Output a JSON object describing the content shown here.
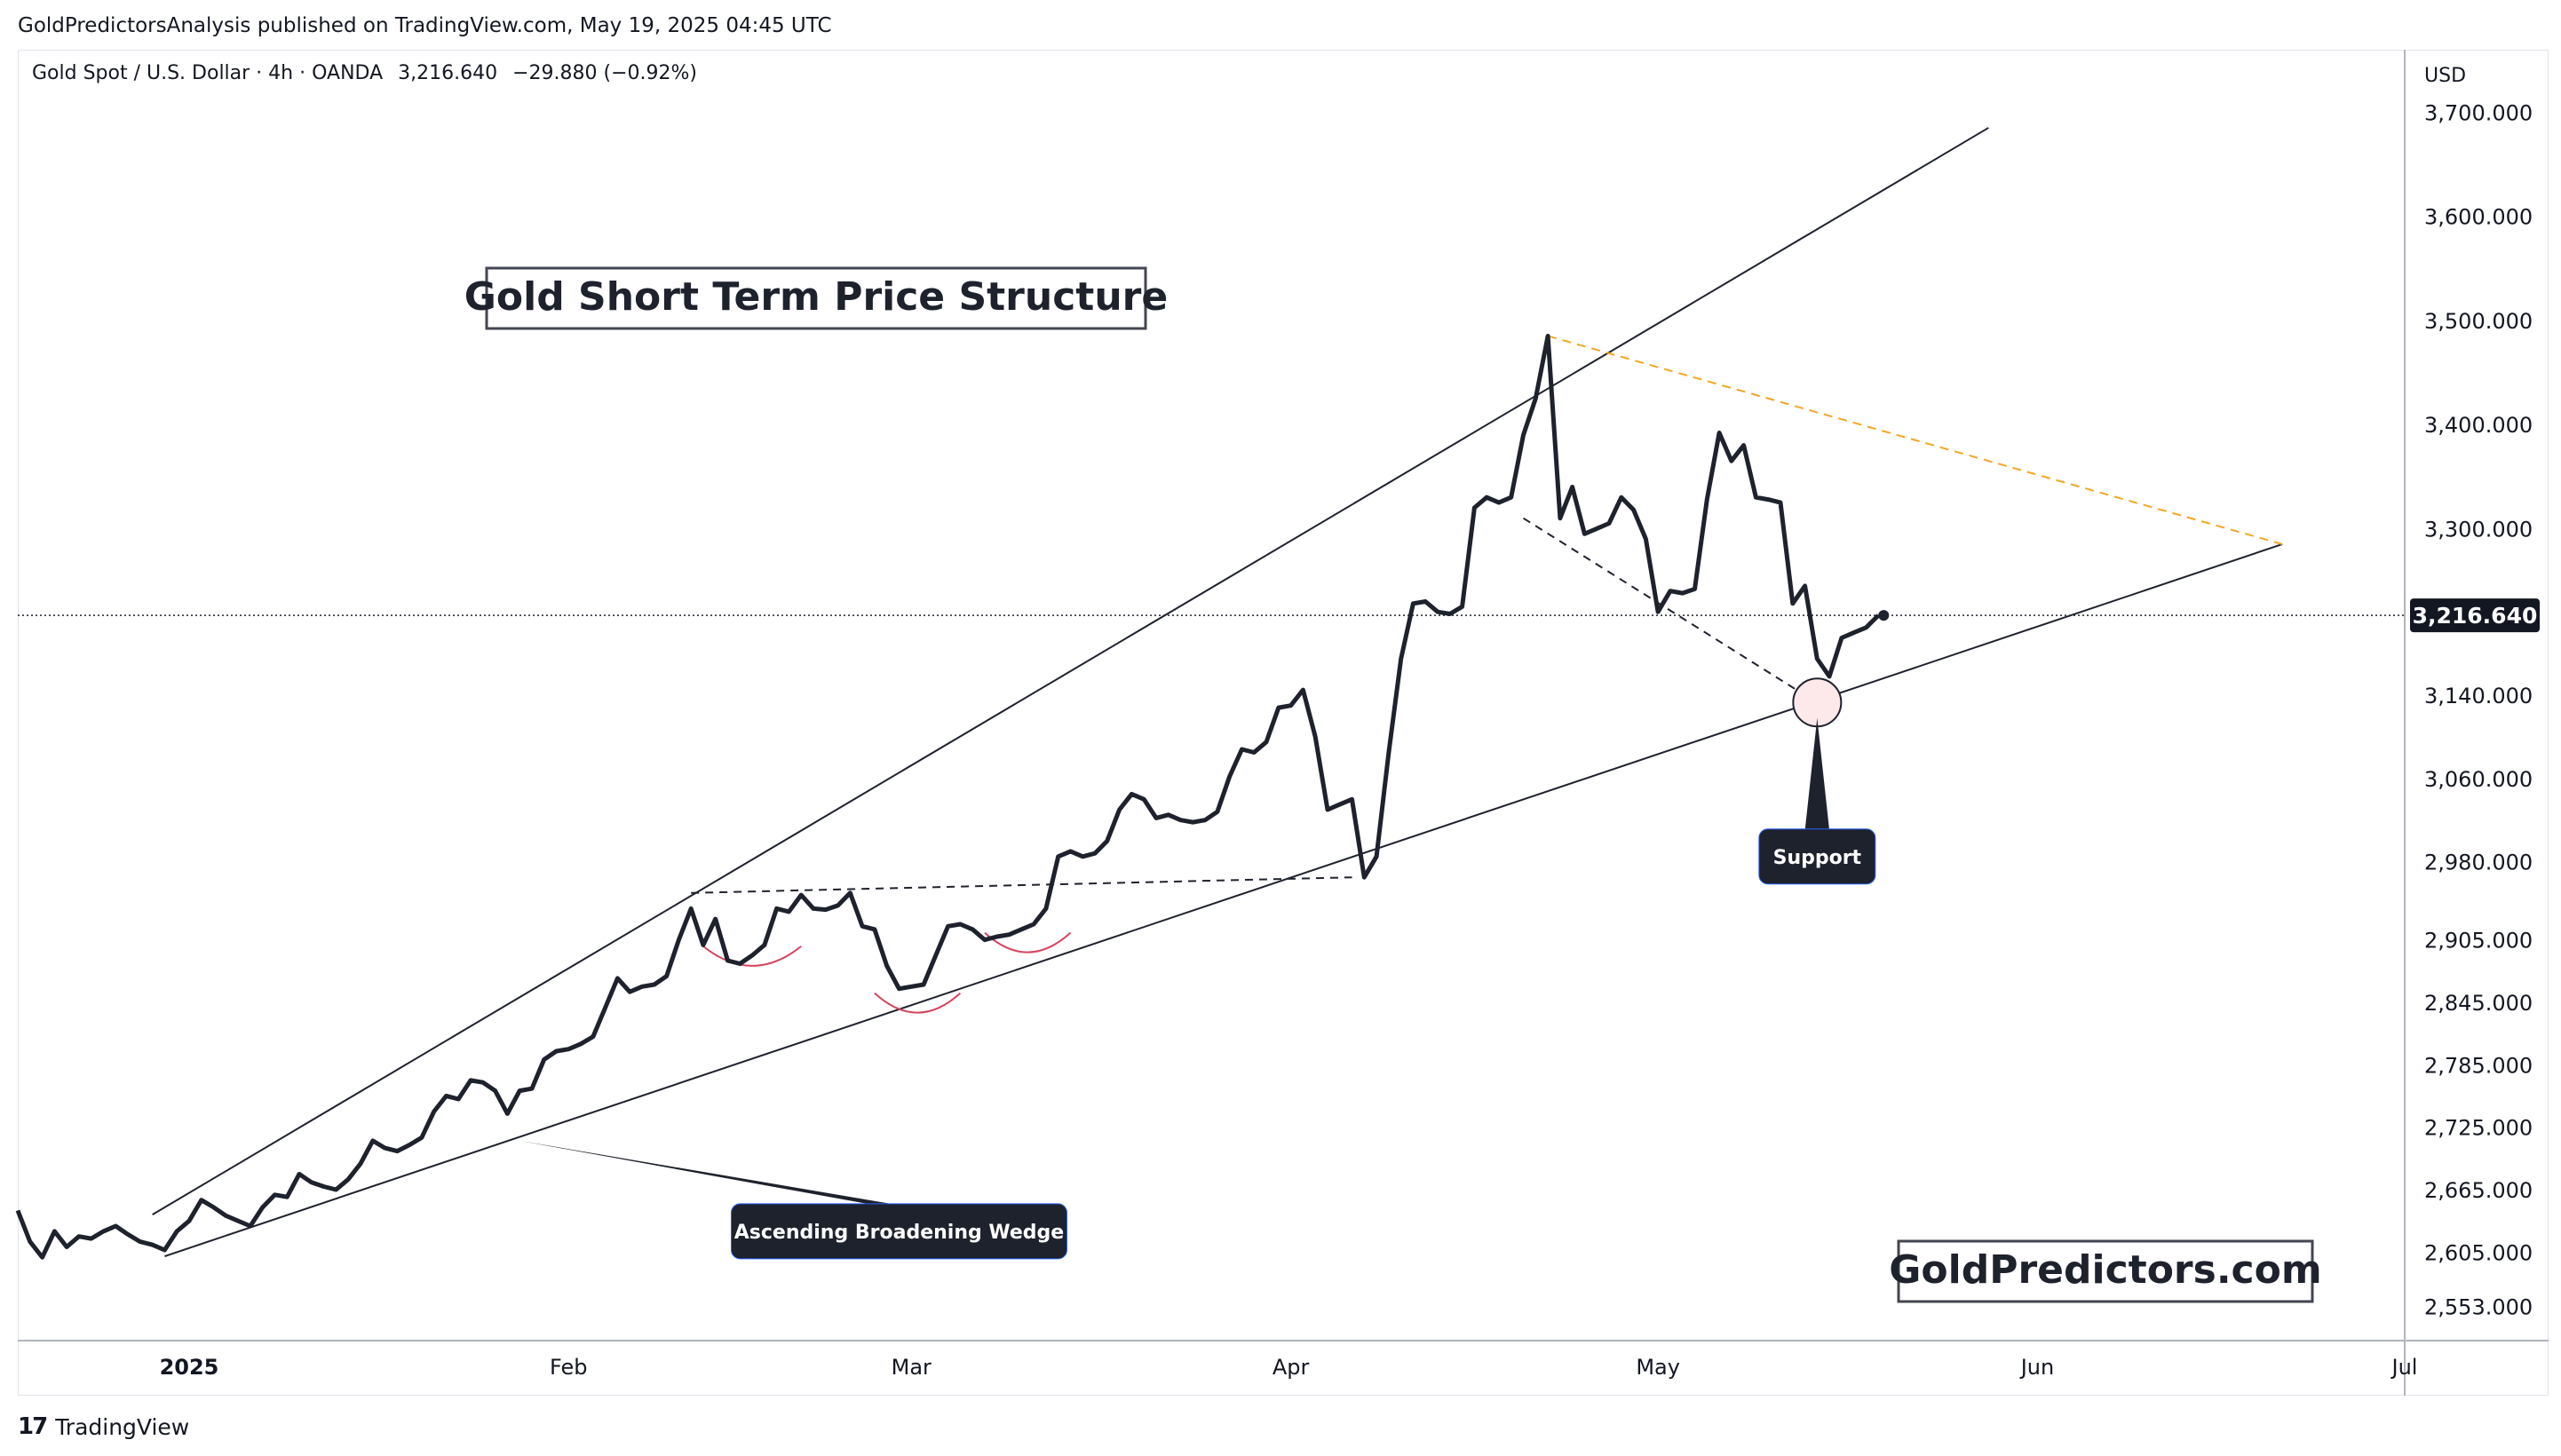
{
  "header": {
    "published": "GoldPredictorsAnalysis published on TradingView.com, May 19, 2025 04:45 UTC",
    "symbol": "Gold Spot / U.S. Dollar · 4h · OANDA",
    "last_price": "3,216.640",
    "change": "−29.880 (−0.92%)"
  },
  "footer": {
    "brand": "TradingView",
    "logo_glyph": "17"
  },
  "colors": {
    "price_line": "#1e222d",
    "trendline": "#1e222d",
    "resistance_dash": "#f5a623",
    "arc": "#d6455d",
    "label_bg": "#1e222d",
    "support_circle": "#fde8ea"
  },
  "chart_data": {
    "type": "line",
    "title": "Gold Short Term Price Structure",
    "watermark": "GoldPredictors.com",
    "currency": "USD",
    "current_price": 3216.64,
    "current_price_label": "3,216.640",
    "ylim": [
      2520,
      3760
    ],
    "y_ticks": [
      2553,
      2605,
      2665,
      2725,
      2785,
      2845,
      2905,
      2980,
      3060,
      3140,
      3300,
      3400,
      3500,
      3600,
      3700
    ],
    "y_tick_labels": [
      "2,553.000",
      "2,605.000",
      "2,665.000",
      "2,725.000",
      "2,785.000",
      "2,845.000",
      "2,905.000",
      "2,980.000",
      "3,060.000",
      "3,140.000",
      "3,300.000",
      "3,400.000",
      "3,500.000",
      "3,600.000",
      "3,700.000"
    ],
    "x_ticks": [
      {
        "date": "2025-01-01",
        "label": "2025",
        "bold": true
      },
      {
        "date": "2025-02-01",
        "label": "Feb",
        "bold": false
      },
      {
        "date": "2025-03-01",
        "label": "Mar",
        "bold": false
      },
      {
        "date": "2025-04-01",
        "label": "Apr",
        "bold": false
      },
      {
        "date": "2025-05-01",
        "label": "May",
        "bold": false
      },
      {
        "date": "2025-06-01",
        "label": "Jun",
        "bold": false
      },
      {
        "date": "2025-07-01",
        "label": "Jul",
        "bold": false
      }
    ],
    "xlim": [
      "2024-12-18",
      "2025-07-01"
    ],
    "series": [
      {
        "points": [
          [
            "2024-12-18",
            2645
          ],
          [
            "2024-12-19",
            2615
          ],
          [
            "2024-12-20",
            2600
          ],
          [
            "2024-12-21",
            2625
          ],
          [
            "2024-12-22",
            2610
          ],
          [
            "2024-12-23",
            2620
          ],
          [
            "2024-12-24",
            2618
          ],
          [
            "2024-12-25",
            2625
          ],
          [
            "2024-12-26",
            2630
          ],
          [
            "2024-12-27",
            2622
          ],
          [
            "2024-12-28",
            2615
          ],
          [
            "2024-12-29",
            2612
          ],
          [
            "2024-12-30",
            2607
          ],
          [
            "2024-12-31",
            2625
          ],
          [
            "2025-01-01",
            2635
          ],
          [
            "2025-01-02",
            2655
          ],
          [
            "2025-01-03",
            2648
          ],
          [
            "2025-01-04",
            2640
          ],
          [
            "2025-01-05",
            2635
          ],
          [
            "2025-01-06",
            2630
          ],
          [
            "2025-01-07",
            2648
          ],
          [
            "2025-01-08",
            2660
          ],
          [
            "2025-01-09",
            2658
          ],
          [
            "2025-01-10",
            2680
          ],
          [
            "2025-01-11",
            2672
          ],
          [
            "2025-01-12",
            2668
          ],
          [
            "2025-01-13",
            2665
          ],
          [
            "2025-01-14",
            2675
          ],
          [
            "2025-01-15",
            2690
          ],
          [
            "2025-01-16",
            2712
          ],
          [
            "2025-01-17",
            2705
          ],
          [
            "2025-01-18",
            2702
          ],
          [
            "2025-01-19",
            2708
          ],
          [
            "2025-01-20",
            2715
          ],
          [
            "2025-01-21",
            2740
          ],
          [
            "2025-01-22",
            2755
          ],
          [
            "2025-01-23",
            2752
          ],
          [
            "2025-01-24",
            2770
          ],
          [
            "2025-01-25",
            2768
          ],
          [
            "2025-01-26",
            2760
          ],
          [
            "2025-01-27",
            2738
          ],
          [
            "2025-01-28",
            2760
          ],
          [
            "2025-01-29",
            2762
          ],
          [
            "2025-01-30",
            2790
          ],
          [
            "2025-01-31",
            2798
          ],
          [
            "2025-02-01",
            2800
          ],
          [
            "2025-02-02",
            2805
          ],
          [
            "2025-02-03",
            2812
          ],
          [
            "2025-02-04",
            2840
          ],
          [
            "2025-02-05",
            2868
          ],
          [
            "2025-02-06",
            2855
          ],
          [
            "2025-02-07",
            2860
          ],
          [
            "2025-02-08",
            2862
          ],
          [
            "2025-02-09",
            2870
          ],
          [
            "2025-02-10",
            2905
          ],
          [
            "2025-02-11",
            2935
          ],
          [
            "2025-02-12",
            2900
          ],
          [
            "2025-02-13",
            2925
          ],
          [
            "2025-02-14",
            2885
          ],
          [
            "2025-02-15",
            2882
          ],
          [
            "2025-02-16",
            2890
          ],
          [
            "2025-02-17",
            2900
          ],
          [
            "2025-02-18",
            2935
          ],
          [
            "2025-02-19",
            2932
          ],
          [
            "2025-02-20",
            2948
          ],
          [
            "2025-02-21",
            2935
          ],
          [
            "2025-02-22",
            2934
          ],
          [
            "2025-02-23",
            2938
          ],
          [
            "2025-02-24",
            2950
          ],
          [
            "2025-02-25",
            2918
          ],
          [
            "2025-02-26",
            2915
          ],
          [
            "2025-02-27",
            2880
          ],
          [
            "2025-02-28",
            2858
          ],
          [
            "2025-03-01",
            2860
          ],
          [
            "2025-03-02",
            2862
          ],
          [
            "2025-03-03",
            2890
          ],
          [
            "2025-03-04",
            2918
          ],
          [
            "2025-03-05",
            2920
          ],
          [
            "2025-03-06",
            2915
          ],
          [
            "2025-03-07",
            2905
          ],
          [
            "2025-03-08",
            2908
          ],
          [
            "2025-03-09",
            2910
          ],
          [
            "2025-03-10",
            2915
          ],
          [
            "2025-03-11",
            2920
          ],
          [
            "2025-03-12",
            2935
          ],
          [
            "2025-03-13",
            2985
          ],
          [
            "2025-03-14",
            2990
          ],
          [
            "2025-03-15",
            2985
          ],
          [
            "2025-03-16",
            2988
          ],
          [
            "2025-03-17",
            3000
          ],
          [
            "2025-03-18",
            3030
          ],
          [
            "2025-03-19",
            3045
          ],
          [
            "2025-03-20",
            3040
          ],
          [
            "2025-03-21",
            3022
          ],
          [
            "2025-03-22",
            3025
          ],
          [
            "2025-03-23",
            3020
          ],
          [
            "2025-03-24",
            3018
          ],
          [
            "2025-03-25",
            3020
          ],
          [
            "2025-03-26",
            3028
          ],
          [
            "2025-03-27",
            3062
          ],
          [
            "2025-03-28",
            3088
          ],
          [
            "2025-03-29",
            3085
          ],
          [
            "2025-03-30",
            3095
          ],
          [
            "2025-03-31",
            3128
          ],
          [
            "2025-04-01",
            3130
          ],
          [
            "2025-04-02",
            3145
          ],
          [
            "2025-04-03",
            3100
          ],
          [
            "2025-04-04",
            3030
          ],
          [
            "2025-04-05",
            3035
          ],
          [
            "2025-04-06",
            3040
          ],
          [
            "2025-04-07",
            2965
          ],
          [
            "2025-04-08",
            2985
          ],
          [
            "2025-04-09",
            3085
          ],
          [
            "2025-04-10",
            3175
          ],
          [
            "2025-04-11",
            3228
          ],
          [
            "2025-04-12",
            3230
          ],
          [
            "2025-04-13",
            3220
          ],
          [
            "2025-04-14",
            3218
          ],
          [
            "2025-04-15",
            3225
          ],
          [
            "2025-04-16",
            3320
          ],
          [
            "2025-04-17",
            3330
          ],
          [
            "2025-04-18",
            3325
          ],
          [
            "2025-04-19",
            3330
          ],
          [
            "2025-04-20",
            3390
          ],
          [
            "2025-04-21",
            3425
          ],
          [
            "2025-04-22",
            3485
          ],
          [
            "2025-04-23",
            3310
          ],
          [
            "2025-04-24",
            3340
          ],
          [
            "2025-04-25",
            3295
          ],
          [
            "2025-04-26",
            3300
          ],
          [
            "2025-04-27",
            3305
          ],
          [
            "2025-04-28",
            3330
          ],
          [
            "2025-04-29",
            3318
          ],
          [
            "2025-04-30",
            3290
          ],
          [
            "2025-05-01",
            3220
          ],
          [
            "2025-05-02",
            3240
          ],
          [
            "2025-05-03",
            3238
          ],
          [
            "2025-05-04",
            3242
          ],
          [
            "2025-05-05",
            3328
          ],
          [
            "2025-05-06",
            3392
          ],
          [
            "2025-05-07",
            3365
          ],
          [
            "2025-05-08",
            3380
          ],
          [
            "2025-05-09",
            3330
          ],
          [
            "2025-05-10",
            3328
          ],
          [
            "2025-05-11",
            3325
          ],
          [
            "2025-05-12",
            3228
          ],
          [
            "2025-05-13",
            3245
          ],
          [
            "2025-05-14",
            3175
          ],
          [
            "2025-05-15",
            3158
          ],
          [
            "2025-05-16",
            3195
          ],
          [
            "2025-05-17",
            3200
          ],
          [
            "2025-05-18",
            3205
          ],
          [
            "2025-05-19",
            3216.64
          ]
        ]
      }
    ],
    "trendlines": [
      {
        "from": [
          "2024-12-29",
          2641
        ],
        "to": [
          "2025-05-28",
          3685
        ]
      },
      {
        "from": [
          "2024-12-30",
          2601
        ],
        "to": [
          "2025-06-21",
          3285
        ]
      }
    ],
    "resistance_line": {
      "from": [
        "2025-04-22",
        3485
      ],
      "to": [
        "2025-06-21",
        3285
      ]
    },
    "dashed_lines": [
      {
        "from": [
          "2025-02-11",
          2950
        ],
        "to": [
          "2025-04-06",
          2965
        ]
      },
      {
        "from": [
          "2025-04-20",
          3310
        ],
        "to": [
          "2025-05-13",
          3140
        ]
      }
    ],
    "arcs": [
      {
        "from": "2025-02-12",
        "to": "2025-02-20",
        "bottom": 2880
      },
      {
        "from": "2025-02-26",
        "to": "2025-03-05",
        "bottom": 2835
      },
      {
        "from": "2025-03-07",
        "to": "2025-03-14",
        "bottom": 2893
      }
    ],
    "support_point": [
      "2025-05-14",
      3133
    ],
    "annotations": [
      {
        "text": "Ascending Broadening Wedge",
        "anchor": [
          "2025-01-28",
          2712
        ],
        "label_center": [
          "2025-02-28",
          2625
        ]
      },
      {
        "text": "Support",
        "anchor": [
          "2025-05-14",
          3118
        ],
        "label_center": [
          "2025-05-14",
          2985
        ]
      }
    ]
  }
}
